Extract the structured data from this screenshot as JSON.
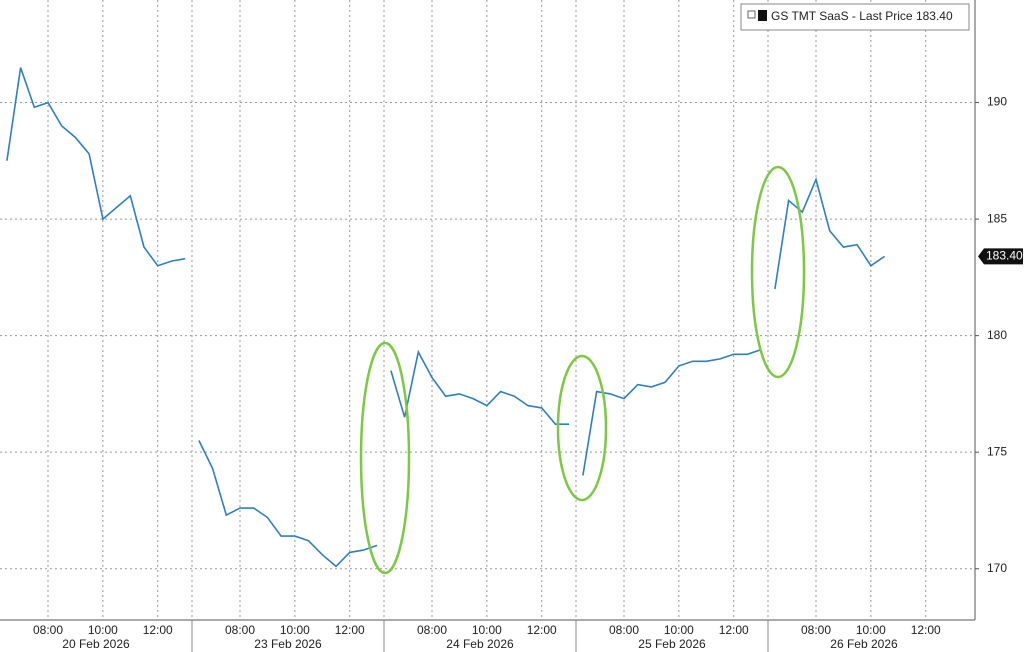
{
  "chart_data": {
    "type": "line",
    "legend": "GS TMT SaaS - Last Price",
    "last_price": 183.4,
    "last_price_label": "183.40",
    "color": "#2f7fc0",
    "ylim": [
      167.8,
      194.4
    ],
    "yticks": [
      170,
      175,
      180,
      185,
      190
    ],
    "grid": true,
    "days": [
      {
        "date": "20 Feb 2026",
        "times": [
          null,
          null,
          null,
          "08:00",
          null,
          null,
          null,
          "10:00",
          null,
          null,
          null,
          "12:00",
          null,
          null
        ],
        "values": [
          187.5,
          191.5,
          189.8,
          190,
          189,
          188.5,
          187.8,
          185,
          185.5,
          186,
          183.8,
          183,
          183.2,
          183.3
        ]
      },
      {
        "date": "23 Feb 2026",
        "times": [
          null,
          null,
          null,
          "08:00",
          null,
          null,
          null,
          "10:00",
          null,
          null,
          null,
          "12:00",
          null,
          null
        ],
        "values": [
          175.5,
          174.3,
          172.3,
          172.6,
          172.6,
          172.2,
          171.4,
          171.4,
          171.2,
          170.6,
          170.1,
          170.7,
          170.8,
          171
        ]
      },
      {
        "date": "24 Feb 2026",
        "times": [
          null,
          null,
          null,
          "08:00",
          null,
          null,
          null,
          "10:00",
          null,
          null,
          null,
          "12:00",
          null,
          null
        ],
        "values": [
          178.5,
          176.5,
          179.3,
          178.2,
          177.4,
          177.5,
          177.3,
          177,
          177.6,
          177.4,
          177,
          176.9,
          176.2,
          176.2
        ]
      },
      {
        "date": "25 Feb 2026",
        "times": [
          null,
          null,
          null,
          "08:00",
          null,
          null,
          null,
          "10:00",
          null,
          null,
          null,
          "12:00",
          null,
          null
        ],
        "values": [
          174,
          177.6,
          177.5,
          177.3,
          177.9,
          177.8,
          178,
          178.7,
          178.9,
          178.9,
          179,
          179.2,
          179.2,
          179.4
        ]
      },
      {
        "date": "26 Feb 2026",
        "times": [
          null,
          null,
          null,
          "08:00",
          null,
          null,
          null,
          "10:00",
          null,
          null,
          null,
          "12:00",
          null,
          null
        ],
        "values": [
          182,
          185.8,
          185.3,
          186.7,
          184.5,
          183.8,
          183.9,
          183,
          183.4,
          null,
          null,
          null,
          null,
          null
        ]
      }
    ]
  }
}
